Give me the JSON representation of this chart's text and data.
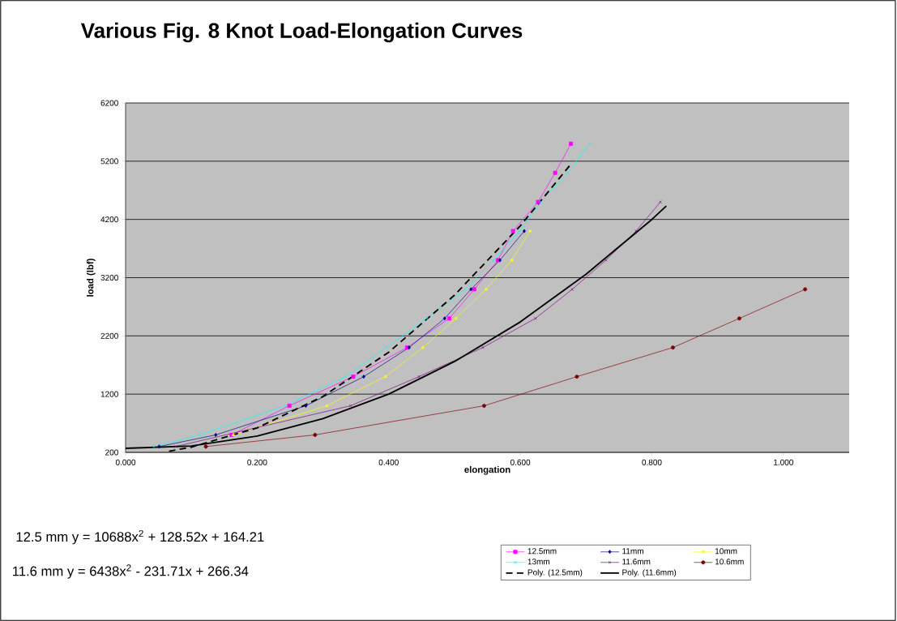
{
  "chart_data": {
    "type": "line",
    "title": "Various Fig. 8 Knot Load-Elongation Curves",
    "xlabel": "elongation",
    "ylabel": "load (lbf)",
    "xlim": [
      0,
      1.1
    ],
    "ylim": [
      200,
      6200
    ],
    "xticks": [
      {
        "value": 0,
        "label": "0.000"
      },
      {
        "value": 0.2,
        "label": "0.200"
      },
      {
        "value": 0.4,
        "label": "0.400"
      },
      {
        "value": 0.6,
        "label": "0.600"
      },
      {
        "value": 0.8,
        "label": "0.800"
      },
      {
        "value": 1.0,
        "label": "1.000"
      }
    ],
    "yticks": [
      200,
      1200,
      2200,
      3200,
      4200,
      5200,
      6200
    ],
    "grid": "y",
    "legend": "bottom right",
    "series": [
      {
        "name": "12.5mm",
        "color": "#ff00ff",
        "marker": "square",
        "x": [
          0.161,
          0.249,
          0.346,
          0.428,
          0.492,
          0.53,
          0.566,
          0.589,
          0.627,
          0.653,
          0.677
        ],
        "values": [
          500,
          1000,
          1500,
          2000,
          2500,
          3000,
          3500,
          4000,
          4500,
          5000,
          5500
        ]
      },
      {
        "name": "11mm",
        "color": "#000080",
        "marker": "diamond",
        "x": [
          0.051,
          0.137,
          0.274,
          0.362,
          0.431,
          0.485,
          0.525,
          0.569,
          0.606
        ],
        "values": [
          300,
          500,
          1000,
          1500,
          2000,
          2500,
          3000,
          3500,
          4000
        ]
      },
      {
        "name": "10mm",
        "color": "#ffff00",
        "marker": "triangle",
        "x": [
          0.164,
          0.306,
          0.395,
          0.452,
          0.502,
          0.548,
          0.587,
          0.615
        ],
        "values": [
          500,
          1000,
          1500,
          2000,
          2500,
          3000,
          3500,
          4000
        ]
      },
      {
        "name": "13mm",
        "color": "#00ffff",
        "marker": "cross",
        "x": [
          0.043,
          0.113,
          0.243,
          0.335,
          0.396,
          0.458,
          0.516,
          0.559,
          0.599,
          0.631,
          0.672,
          0.706
        ],
        "values": [
          300,
          500,
          1000,
          1500,
          2000,
          2500,
          3000,
          3500,
          4000,
          4500,
          5000,
          5500
        ]
      },
      {
        "name": "11.6mm",
        "color": "#800080",
        "marker": "cross",
        "x": [
          0.076,
          0.342,
          0.446,
          0.543,
          0.623,
          0.679,
          0.73,
          0.776,
          0.813
        ],
        "values": [
          300,
          1000,
          1500,
          2000,
          2500,
          3000,
          3500,
          4000,
          4500
        ]
      },
      {
        "name": "10.6mm",
        "color": "#800000",
        "marker": "circle",
        "x": [
          0.122,
          0.288,
          0.545,
          0.686,
          0.832,
          0.933,
          1.033
        ],
        "values": [
          300,
          500,
          1000,
          1500,
          2000,
          2500,
          3000
        ]
      },
      {
        "name": "Poly. (12.5mm)",
        "type": "line",
        "color": "#000000",
        "marker": "none",
        "line_style": "dashed",
        "x": [
          0.066,
          0.1,
          0.2,
          0.3,
          0.4,
          0.5,
          0.6,
          0.677
        ],
        "values": [
          220,
          290,
          620,
          1160,
          1920,
          2900,
          4090,
          5150
        ]
      },
      {
        "name": "Poly. (11.6mm)",
        "type": "line",
        "color": "#000000",
        "marker": "none",
        "line_style": "solid",
        "x": [
          0.0,
          0.1,
          0.2,
          0.3,
          0.4,
          0.5,
          0.6,
          0.7,
          0.8,
          0.822
        ],
        "values": [
          270,
          310,
          480,
          780,
          1200,
          1760,
          2440,
          3260,
          4200,
          4430
        ]
      }
    ],
    "annotations": [
      "12.5 mm y = 10688x$^{2}$ + 128.52x + 164.21",
      "11.6 mm y = 6438x$^{2}$ - 231.71x + 266.34"
    ]
  }
}
